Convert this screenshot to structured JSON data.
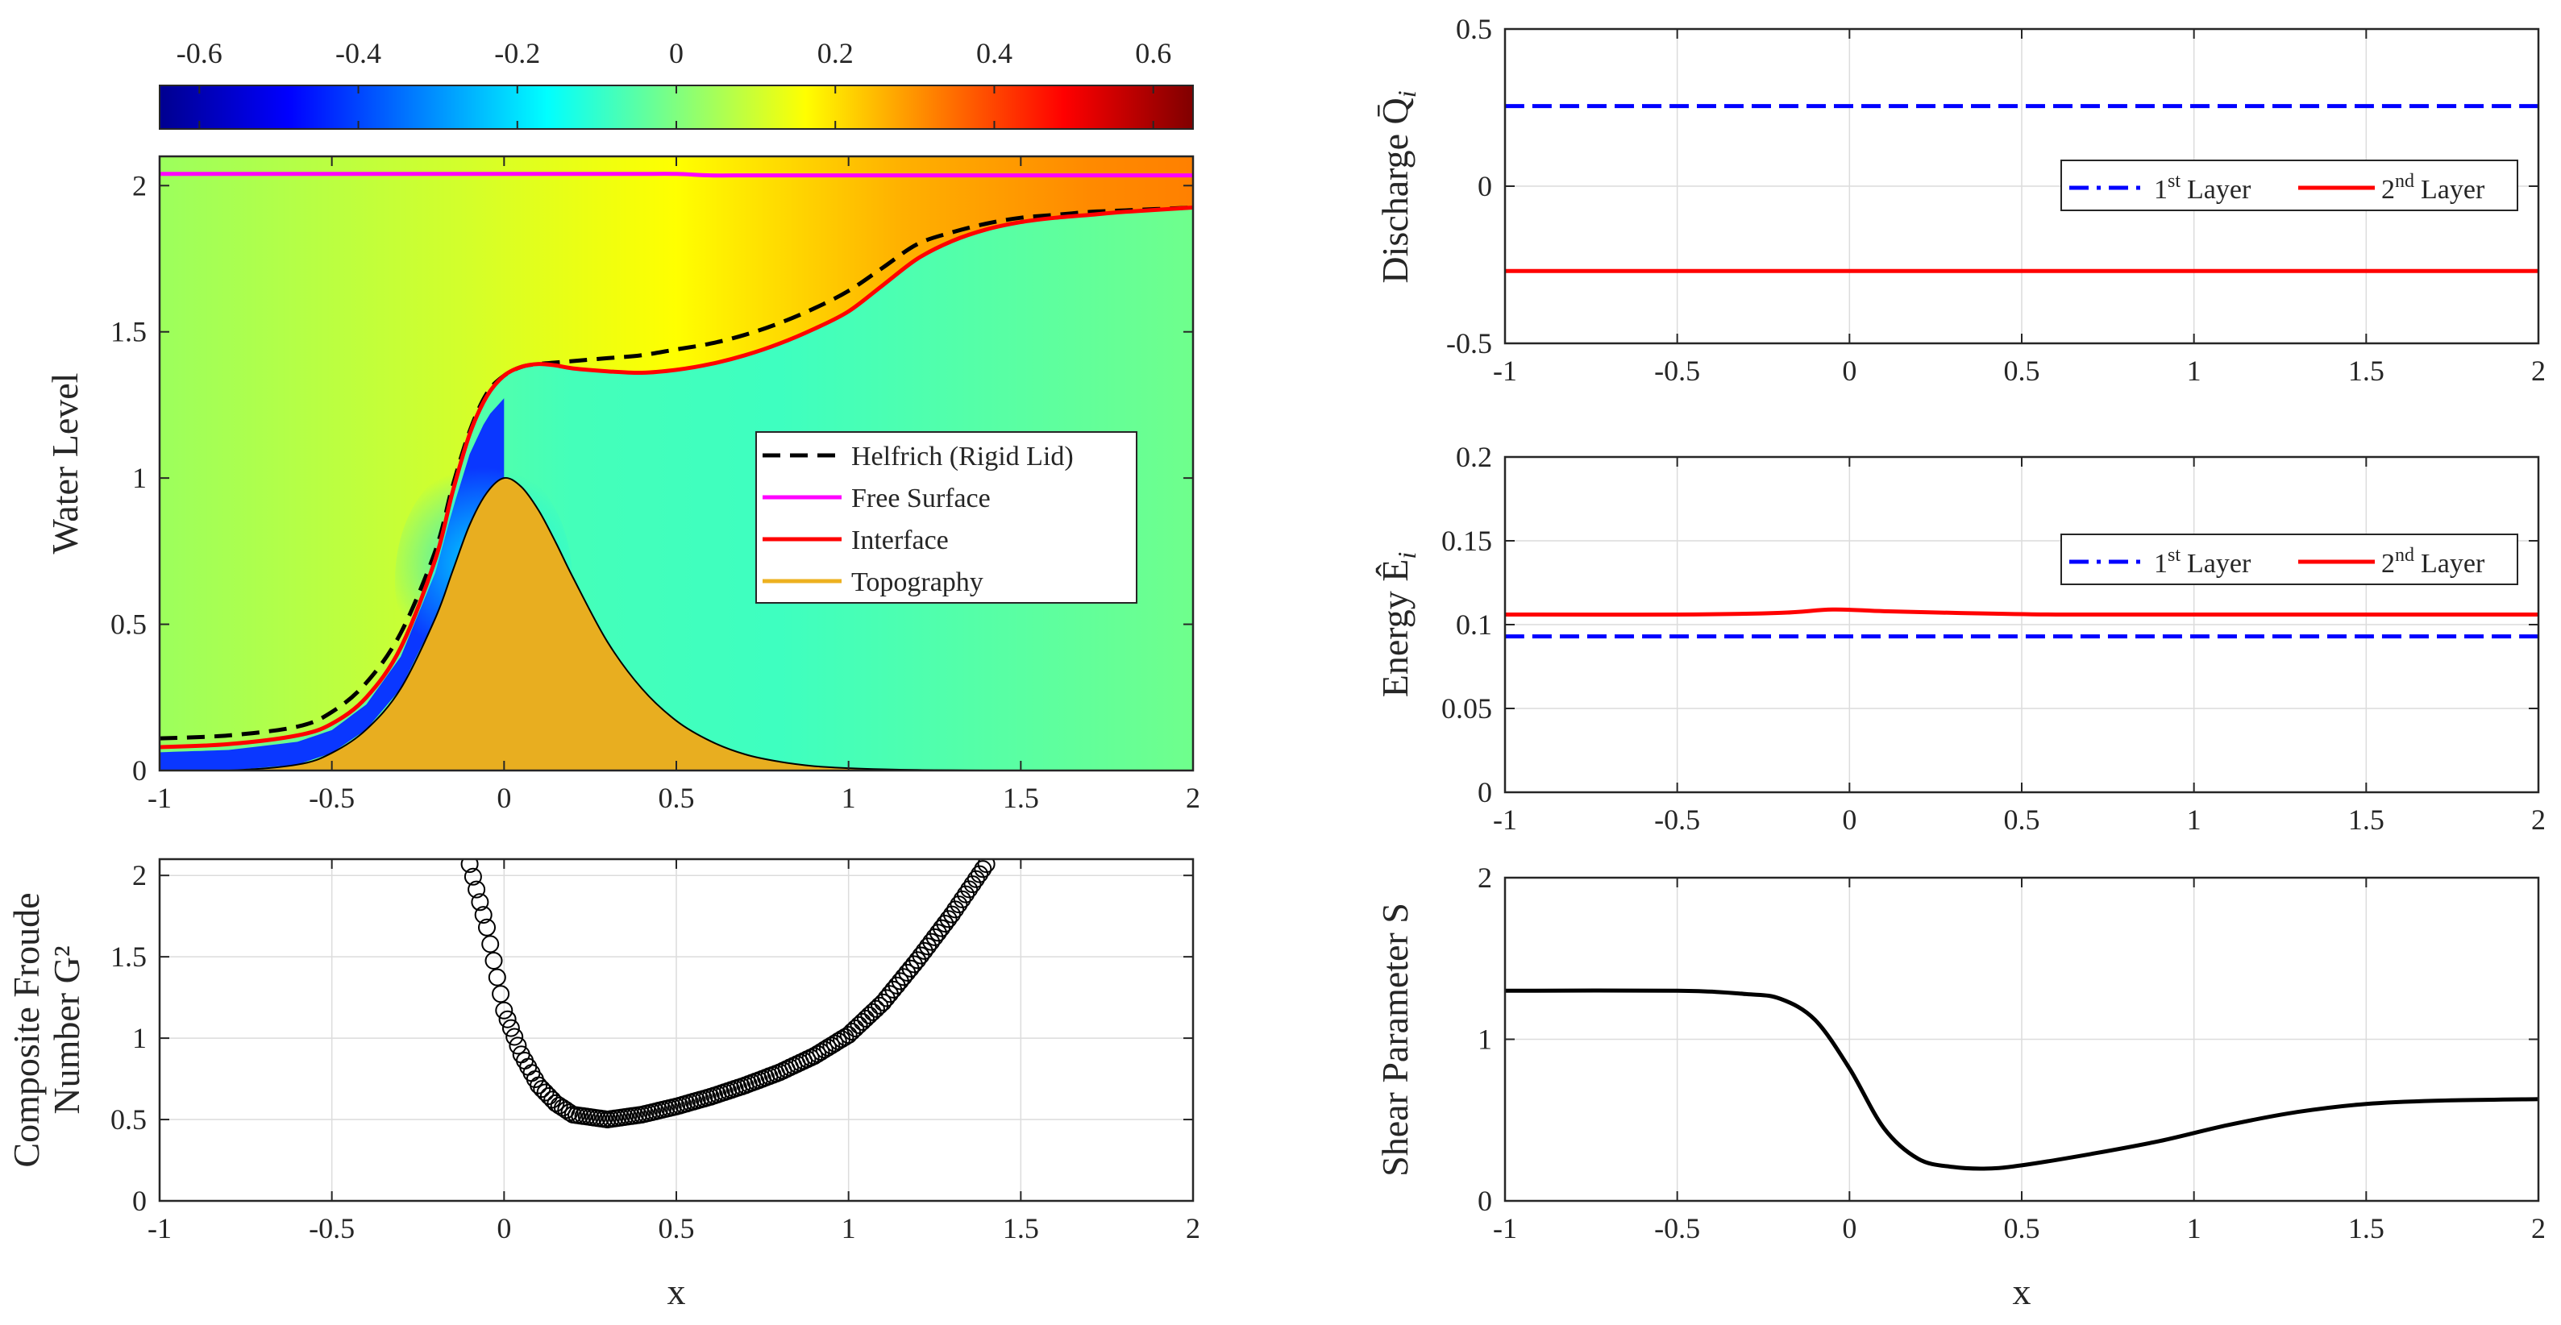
{
  "figure": {
    "panels": [
      "water_level",
      "froude",
      "discharge",
      "energy",
      "shear"
    ]
  },
  "chart_data": [
    {
      "id": "colorbar",
      "type": "heatmap",
      "colormap": "jet",
      "range": [
        -0.65,
        0.65
      ],
      "ticks": [
        -0.6,
        -0.4,
        -0.2,
        0,
        0.2,
        0.4,
        0.6
      ],
      "tick_labels": [
        "-0.6",
        "-0.4",
        "-0.2",
        "0",
        "0.2",
        "0.4",
        "0.6"
      ]
    },
    {
      "id": "water_level",
      "type": "area",
      "title": "",
      "xlabel": "",
      "ylabel": "Water Level",
      "xlim": [
        -1,
        2
      ],
      "ylim": [
        0,
        2.1
      ],
      "xticks": [
        -1,
        -0.5,
        0,
        0.5,
        1,
        1.5,
        2
      ],
      "xtick_labels": [
        "-1",
        "-0.5",
        "0",
        "0.5",
        "1",
        "1.5",
        "2"
      ],
      "yticks": [
        0,
        0.5,
        1,
        1.5,
        2
      ],
      "ytick_labels": [
        "0",
        "0.5",
        "1",
        "1.5",
        "2"
      ],
      "grid": false,
      "legend_position": "center-right",
      "legend": [
        "Helfrich (Rigid Lid)",
        "Free Surface",
        "Interface",
        "Topography"
      ],
      "colors": {
        "helfrich": "#000000",
        "free_surface": "#ff00ff",
        "interface": "#ff0000",
        "topography": "#edb120"
      },
      "x": [
        -1.0,
        -0.8,
        -0.6,
        -0.5,
        -0.4,
        -0.3,
        -0.2,
        -0.15,
        -0.1,
        -0.05,
        0.0,
        0.05,
        0.1,
        0.15,
        0.2,
        0.3,
        0.4,
        0.5,
        0.6,
        0.7,
        0.8,
        0.9,
        1.0,
        1.1,
        1.2,
        1.3,
        1.4,
        1.5,
        1.6,
        1.7,
        1.8,
        2.0
      ],
      "series": [
        {
          "name": "Topography",
          "values": [
            0.0,
            0.0,
            0.02,
            0.06,
            0.14,
            0.28,
            0.52,
            0.68,
            0.84,
            0.95,
            1.0,
            0.97,
            0.89,
            0.78,
            0.66,
            0.44,
            0.28,
            0.17,
            0.1,
            0.055,
            0.03,
            0.015,
            0.008,
            0.004,
            0.002,
            0.001,
            0.0,
            0.0,
            0.0,
            0.0,
            0.0,
            0.0
          ]
        },
        {
          "name": "Interface",
          "values": [
            0.08,
            0.09,
            0.12,
            0.16,
            0.25,
            0.42,
            0.72,
            0.95,
            1.15,
            1.28,
            1.35,
            1.38,
            1.39,
            1.385,
            1.375,
            1.365,
            1.36,
            1.37,
            1.39,
            1.42,
            1.46,
            1.51,
            1.57,
            1.66,
            1.75,
            1.81,
            1.85,
            1.875,
            1.89,
            1.9,
            1.91,
            1.925
          ]
        },
        {
          "name": "Free Surface",
          "values": [
            2.04,
            2.04,
            2.04,
            2.04,
            2.04,
            2.04,
            2.04,
            2.04,
            2.04,
            2.04,
            2.04,
            2.04,
            2.04,
            2.04,
            2.04,
            2.04,
            2.04,
            2.04,
            2.035,
            2.035,
            2.035,
            2.035,
            2.035,
            2.035,
            2.035,
            2.035,
            2.035,
            2.035,
            2.035,
            2.035,
            2.035,
            2.035
          ]
        },
        {
          "name": "Helfrich (Rigid Lid)",
          "values": [
            0.11,
            0.12,
            0.15,
            0.2,
            0.3,
            0.47,
            0.75,
            0.97,
            1.16,
            1.29,
            1.35,
            1.38,
            1.39,
            1.395,
            1.4,
            1.41,
            1.42,
            1.44,
            1.46,
            1.49,
            1.53,
            1.58,
            1.64,
            1.72,
            1.8,
            1.84,
            1.87,
            1.89,
            1.9,
            1.91,
            1.915,
            1.925
          ]
        }
      ]
    },
    {
      "id": "froude",
      "type": "scatter",
      "xlabel": "x",
      "ylabel_line1": "Composite Froude",
      "ylabel_line2": "Number G²",
      "xlim": [
        -1,
        2
      ],
      "ylim": [
        0,
        2.1
      ],
      "xticks": [
        -1,
        -0.5,
        0,
        0.5,
        1,
        1.5,
        2
      ],
      "xtick_labels": [
        "-1",
        "-0.5",
        "0",
        "0.5",
        "1",
        "1.5",
        "2"
      ],
      "yticks": [
        0,
        0.5,
        1,
        1.5,
        2
      ],
      "ytick_labels": [
        "0",
        "0.5",
        "1",
        "1.5",
        "2"
      ],
      "grid": true,
      "marker": "open-circle",
      "x": [
        -0.1,
        -0.05,
        0.0,
        0.05,
        0.1,
        0.15,
        0.2,
        0.3,
        0.4,
        0.5,
        0.6,
        0.7,
        0.8,
        0.9,
        1.0,
        1.1,
        1.2,
        1.3,
        1.4
      ],
      "y": [
        2.07,
        1.68,
        1.17,
        0.9,
        0.71,
        0.6,
        0.53,
        0.5,
        0.53,
        0.58,
        0.64,
        0.71,
        0.79,
        0.89,
        1.02,
        1.22,
        1.48,
        1.76,
        2.07
      ]
    },
    {
      "id": "discharge",
      "type": "line",
      "ylabel": "Discharge Q̄",
      "ylabel_sub": "i",
      "xlim": [
        -1,
        2
      ],
      "ylim": [
        -0.5,
        0.5
      ],
      "xticks": [
        -1,
        -0.5,
        0,
        0.5,
        1,
        1.5,
        2
      ],
      "xtick_labels": [
        "-1",
        "-0.5",
        "0",
        "0.5",
        "1",
        "1.5",
        "2"
      ],
      "yticks": [
        -0.5,
        0,
        0.5
      ],
      "ytick_labels": [
        "-0.5",
        "0",
        "0.5"
      ],
      "grid": true,
      "legend_position": "center-right",
      "legend": [
        {
          "base": "1",
          "sup": "st",
          "text": "Layer",
          "color": "#0000ff",
          "style": "dash-dot"
        },
        {
          "base": "2",
          "sup": "nd",
          "text": "Layer",
          "color": "#ff0000",
          "style": "solid"
        }
      ],
      "x": [
        -1,
        -0.5,
        0,
        0.5,
        1,
        1.5,
        2
      ],
      "series": [
        {
          "name": "1st Layer",
          "values": [
            0.255,
            0.255,
            0.255,
            0.255,
            0.255,
            0.255,
            0.255
          ]
        },
        {
          "name": "2nd Layer",
          "values": [
            -0.27,
            -0.27,
            -0.27,
            -0.27,
            -0.27,
            -0.27,
            -0.27
          ]
        }
      ]
    },
    {
      "id": "energy",
      "type": "line",
      "ylabel": "Energy Ê",
      "ylabel_sub": "i",
      "xlim": [
        -1,
        2
      ],
      "ylim": [
        0,
        0.2
      ],
      "xticks": [
        -1,
        -0.5,
        0,
        0.5,
        1,
        1.5,
        2
      ],
      "xtick_labels": [
        "-1",
        "-0.5",
        "0",
        "0.5",
        "1",
        "1.5",
        "2"
      ],
      "yticks": [
        0,
        0.05,
        0.1,
        0.15,
        0.2
      ],
      "ytick_labels": [
        "0",
        "0.05",
        "0.1",
        "0.15",
        "0.2"
      ],
      "grid": true,
      "legend_position": "center-right",
      "legend": [
        {
          "base": "1",
          "sup": "st",
          "text": "Layer",
          "color": "#0000ff",
          "style": "dash-dot"
        },
        {
          "base": "2",
          "sup": "nd",
          "text": "Layer",
          "color": "#ff0000",
          "style": "solid"
        }
      ],
      "x": [
        -1,
        -0.5,
        -0.2,
        -0.05,
        0.1,
        0.3,
        0.6,
        1.0,
        1.5,
        2.0
      ],
      "series": [
        {
          "name": "1st Layer",
          "values": [
            0.093,
            0.093,
            0.093,
            0.093,
            0.093,
            0.093,
            0.093,
            0.093,
            0.093,
            0.093
          ]
        },
        {
          "name": "2nd Layer",
          "values": [
            0.106,
            0.106,
            0.107,
            0.109,
            0.108,
            0.107,
            0.106,
            0.106,
            0.106,
            0.106
          ]
        }
      ]
    },
    {
      "id": "shear",
      "type": "line",
      "xlabel": "x",
      "ylabel": "Shear Parameter S",
      "xlim": [
        -1,
        2
      ],
      "ylim": [
        0,
        2
      ],
      "xticks": [
        -1,
        -0.5,
        0,
        0.5,
        1,
        1.5,
        2
      ],
      "xtick_labels": [
        "-1",
        "-0.5",
        "0",
        "0.5",
        "1",
        "1.5",
        "2"
      ],
      "yticks": [
        0,
        1,
        2
      ],
      "ytick_labels": [
        "0",
        "1",
        "2"
      ],
      "grid": true,
      "x": [
        -1.0,
        -0.5,
        -0.3,
        -0.2,
        -0.1,
        0.0,
        0.1,
        0.2,
        0.3,
        0.4,
        0.5,
        0.7,
        0.9,
        1.1,
        1.3,
        1.5,
        1.7,
        2.0
      ],
      "series": [
        {
          "name": "S",
          "values": [
            1.3,
            1.3,
            1.28,
            1.25,
            1.12,
            0.82,
            0.45,
            0.26,
            0.21,
            0.2,
            0.22,
            0.29,
            0.37,
            0.47,
            0.55,
            0.6,
            0.62,
            0.63
          ]
        }
      ]
    }
  ]
}
